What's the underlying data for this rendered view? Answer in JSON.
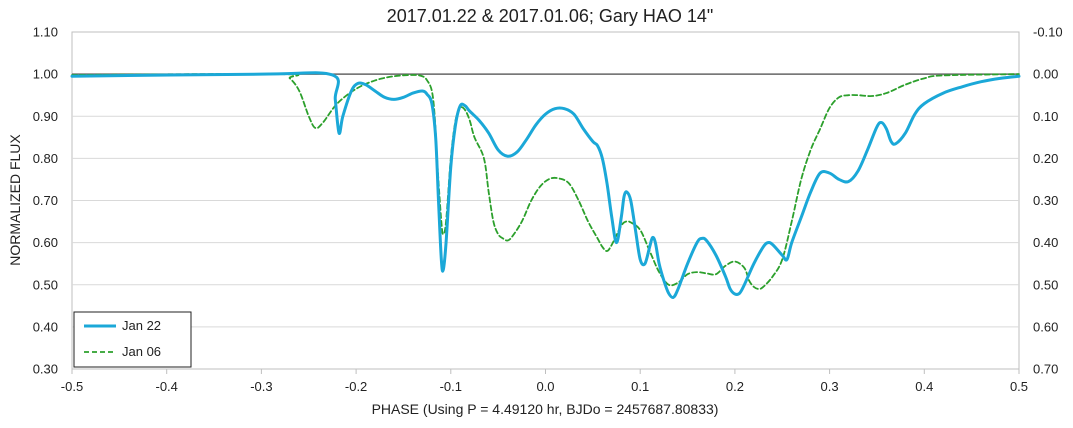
{
  "chart_data": {
    "type": "line",
    "title": "2017.01.22 & 2017.01.06; Gary HAO 14\"",
    "xlabel": "PHASE (Using P = 4.49120 hr, BJDo = 2457687.80833)",
    "ylabel": "NORMALIZED FLUX",
    "xlim": [
      -0.5,
      0.5
    ],
    "ylim": [
      0.3,
      1.1
    ],
    "x_ticks": [
      "-0.5",
      "-0.4",
      "-0.3",
      "-0.2",
      "-0.1",
      "0.0",
      "0.1",
      "0.2",
      "0.3",
      "0.4",
      "0.5"
    ],
    "y_ticks_left": [
      "0.30",
      "0.40",
      "0.50",
      "0.60",
      "0.70",
      "0.80",
      "0.90",
      "1.00",
      "1.10"
    ],
    "y_ticks_right": [
      "0.70",
      "0.60",
      "0.50",
      "0.40",
      "0.30",
      "0.20",
      "0.10",
      "0.00",
      "-0.10"
    ],
    "reference_line_y": 1.0,
    "grid": "horizontal",
    "legend_position": "bottom-left",
    "series": [
      {
        "name": "Jan 22",
        "color": "#1ba8d8",
        "style": "solid",
        "points": [
          [
            -0.5,
            0.995
          ],
          [
            -0.3,
            1.0
          ],
          [
            -0.225,
            0.998
          ],
          [
            -0.222,
            0.94
          ],
          [
            -0.218,
            0.86
          ],
          [
            -0.214,
            0.9
          ],
          [
            -0.205,
            0.96
          ],
          [
            -0.198,
            0.978
          ],
          [
            -0.19,
            0.975
          ],
          [
            -0.18,
            0.96
          ],
          [
            -0.17,
            0.945
          ],
          [
            -0.16,
            0.94
          ],
          [
            -0.15,
            0.945
          ],
          [
            -0.14,
            0.955
          ],
          [
            -0.13,
            0.96
          ],
          [
            -0.125,
            0.952
          ],
          [
            -0.12,
            0.93
          ],
          [
            -0.116,
            0.85
          ],
          [
            -0.113,
            0.7
          ],
          [
            -0.11,
            0.56
          ],
          [
            -0.108,
            0.535
          ],
          [
            -0.105,
            0.6
          ],
          [
            -0.1,
            0.78
          ],
          [
            -0.095,
            0.88
          ],
          [
            -0.09,
            0.925
          ],
          [
            -0.085,
            0.925
          ],
          [
            -0.08,
            0.912
          ],
          [
            -0.07,
            0.89
          ],
          [
            -0.06,
            0.86
          ],
          [
            -0.05,
            0.82
          ],
          [
            -0.04,
            0.805
          ],
          [
            -0.03,
            0.815
          ],
          [
            -0.02,
            0.845
          ],
          [
            -0.01,
            0.88
          ],
          [
            0.0,
            0.905
          ],
          [
            0.01,
            0.918
          ],
          [
            0.02,
            0.918
          ],
          [
            0.03,
            0.905
          ],
          [
            0.04,
            0.87
          ],
          [
            0.05,
            0.84
          ],
          [
            0.055,
            0.83
          ],
          [
            0.06,
            0.8
          ],
          [
            0.065,
            0.74
          ],
          [
            0.07,
            0.66
          ],
          [
            0.075,
            0.6
          ],
          [
            0.08,
            0.66
          ],
          [
            0.083,
            0.71
          ],
          [
            0.086,
            0.72
          ],
          [
            0.09,
            0.7
          ],
          [
            0.095,
            0.63
          ],
          [
            0.1,
            0.56
          ],
          [
            0.105,
            0.55
          ],
          [
            0.11,
            0.59
          ],
          [
            0.113,
            0.612
          ],
          [
            0.116,
            0.6
          ],
          [
            0.12,
            0.55
          ],
          [
            0.125,
            0.51
          ],
          [
            0.13,
            0.48
          ],
          [
            0.135,
            0.47
          ],
          [
            0.14,
            0.49
          ],
          [
            0.15,
            0.55
          ],
          [
            0.16,
            0.6
          ],
          [
            0.165,
            0.61
          ],
          [
            0.17,
            0.605
          ],
          [
            0.18,
            0.57
          ],
          [
            0.19,
            0.52
          ],
          [
            0.195,
            0.49
          ],
          [
            0.2,
            0.478
          ],
          [
            0.205,
            0.48
          ],
          [
            0.21,
            0.5
          ],
          [
            0.22,
            0.55
          ],
          [
            0.23,
            0.59
          ],
          [
            0.235,
            0.6
          ],
          [
            0.24,
            0.595
          ],
          [
            0.25,
            0.57
          ],
          [
            0.255,
            0.56
          ],
          [
            0.26,
            0.6
          ],
          [
            0.27,
            0.66
          ],
          [
            0.28,
            0.72
          ],
          [
            0.29,
            0.765
          ],
          [
            0.3,
            0.765
          ],
          [
            0.31,
            0.75
          ],
          [
            0.32,
            0.745
          ],
          [
            0.33,
            0.77
          ],
          [
            0.34,
            0.82
          ],
          [
            0.35,
            0.875
          ],
          [
            0.355,
            0.885
          ],
          [
            0.36,
            0.87
          ],
          [
            0.365,
            0.84
          ],
          [
            0.37,
            0.835
          ],
          [
            0.38,
            0.86
          ],
          [
            0.39,
            0.905
          ],
          [
            0.4,
            0.93
          ],
          [
            0.42,
            0.955
          ],
          [
            0.44,
            0.97
          ],
          [
            0.46,
            0.982
          ],
          [
            0.48,
            0.99
          ],
          [
            0.5,
            0.995
          ]
        ]
      },
      {
        "name": "Jan 06",
        "color": "#2ca02c",
        "style": "dashed",
        "points": [
          [
            -0.5,
            0.998
          ],
          [
            -0.28,
            1.0
          ],
          [
            -0.27,
            0.99
          ],
          [
            -0.26,
            0.96
          ],
          [
            -0.25,
            0.9
          ],
          [
            -0.243,
            0.872
          ],
          [
            -0.235,
            0.885
          ],
          [
            -0.22,
            0.93
          ],
          [
            -0.2,
            0.965
          ],
          [
            -0.18,
            0.985
          ],
          [
            -0.16,
            0.995
          ],
          [
            -0.14,
            0.998
          ],
          [
            -0.13,
            0.995
          ],
          [
            -0.125,
            0.985
          ],
          [
            -0.12,
            0.96
          ],
          [
            -0.117,
            0.9
          ],
          [
            -0.114,
            0.78
          ],
          [
            -0.11,
            0.65
          ],
          [
            -0.108,
            0.62
          ],
          [
            -0.105,
            0.65
          ],
          [
            -0.1,
            0.8
          ],
          [
            -0.095,
            0.89
          ],
          [
            -0.09,
            0.92
          ],
          [
            -0.085,
            0.915
          ],
          [
            -0.08,
            0.89
          ],
          [
            -0.075,
            0.85
          ],
          [
            -0.065,
            0.8
          ],
          [
            -0.06,
            0.72
          ],
          [
            -0.055,
            0.65
          ],
          [
            -0.05,
            0.62
          ],
          [
            -0.045,
            0.61
          ],
          [
            -0.04,
            0.605
          ],
          [
            -0.035,
            0.615
          ],
          [
            -0.025,
            0.65
          ],
          [
            -0.015,
            0.7
          ],
          [
            -0.005,
            0.735
          ],
          [
            0.005,
            0.752
          ],
          [
            0.015,
            0.752
          ],
          [
            0.025,
            0.74
          ],
          [
            0.035,
            0.7
          ],
          [
            0.045,
            0.65
          ],
          [
            0.055,
            0.61
          ],
          [
            0.06,
            0.59
          ],
          [
            0.065,
            0.58
          ],
          [
            0.07,
            0.595
          ],
          [
            0.08,
            0.64
          ],
          [
            0.085,
            0.65
          ],
          [
            0.09,
            0.648
          ],
          [
            0.1,
            0.63
          ],
          [
            0.11,
            0.58
          ],
          [
            0.12,
            0.53
          ],
          [
            0.13,
            0.5
          ],
          [
            0.14,
            0.505
          ],
          [
            0.15,
            0.525
          ],
          [
            0.16,
            0.53
          ],
          [
            0.17,
            0.527
          ],
          [
            0.18,
            0.525
          ],
          [
            0.19,
            0.545
          ],
          [
            0.2,
            0.555
          ],
          [
            0.21,
            0.54
          ],
          [
            0.215,
            0.51
          ],
          [
            0.22,
            0.495
          ],
          [
            0.225,
            0.49
          ],
          [
            0.23,
            0.495
          ],
          [
            0.24,
            0.52
          ],
          [
            0.25,
            0.56
          ],
          [
            0.26,
            0.65
          ],
          [
            0.27,
            0.75
          ],
          [
            0.28,
            0.82
          ],
          [
            0.29,
            0.87
          ],
          [
            0.3,
            0.92
          ],
          [
            0.31,
            0.945
          ],
          [
            0.32,
            0.95
          ],
          [
            0.33,
            0.95
          ],
          [
            0.345,
            0.948
          ],
          [
            0.36,
            0.955
          ],
          [
            0.38,
            0.975
          ],
          [
            0.4,
            0.99
          ],
          [
            0.42,
            0.997
          ],
          [
            0.5,
            1.0
          ]
        ]
      }
    ]
  }
}
